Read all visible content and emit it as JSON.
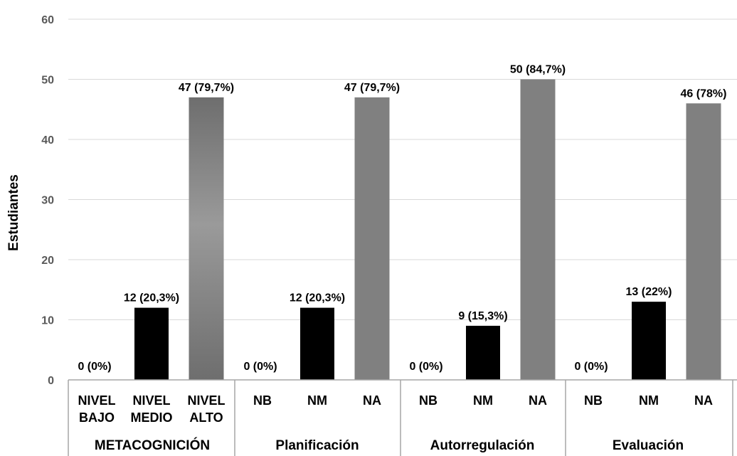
{
  "chart_data": {
    "type": "bar",
    "ylabel": "Estudiantes",
    "ylim": [
      0,
      60
    ],
    "yticks": [
      0,
      10,
      20,
      30,
      40,
      50,
      60
    ],
    "grid": "horizontal",
    "groups": [
      {
        "name": "METACOGNICIÓN",
        "bars": [
          {
            "label": [
              "NIVEL",
              "BAJO"
            ],
            "value": 0,
            "data_label": "0 (0%)"
          },
          {
            "label": [
              "NIVEL",
              "MEDIO"
            ],
            "value": 12,
            "data_label": "12 (20,3%)"
          },
          {
            "label": [
              "NIVEL",
              "ALTO"
            ],
            "value": 47,
            "data_label": "47 (79,7%)"
          }
        ]
      },
      {
        "name": "Planificación",
        "bars": [
          {
            "label": [
              "NB"
            ],
            "value": 0,
            "data_label": "0 (0%)"
          },
          {
            "label": [
              "NM"
            ],
            "value": 12,
            "data_label": "12 (20,3%)"
          },
          {
            "label": [
              "NA"
            ],
            "value": 47,
            "data_label": "47 (79,7%)"
          }
        ]
      },
      {
        "name": "Autorregulación",
        "bars": [
          {
            "label": [
              "NB"
            ],
            "value": 0,
            "data_label": "0 (0%)"
          },
          {
            "label": [
              "NM"
            ],
            "value": 9,
            "data_label": "9 (15,3%)"
          },
          {
            "label": [
              "NA"
            ],
            "value": 50,
            "data_label": "50 (84,7%)"
          }
        ]
      },
      {
        "name": "Evaluación",
        "bars": [
          {
            "label": [
              "NB"
            ],
            "value": 0,
            "data_label": "0 (0%)"
          },
          {
            "label": [
              "NM"
            ],
            "value": 13,
            "data_label": "13 (22%)"
          },
          {
            "label": [
              "NA"
            ],
            "value": 46,
            "data_label": "46 (78%)"
          }
        ]
      }
    ],
    "colors": {
      "medio": "#000000",
      "alto": "#808080",
      "alto_first_top": "#6e6e6e",
      "alto_first_mid": "#9a9a9a",
      "grid": "#d9d9d9",
      "axis": "#a6a6a6",
      "text": "#000000",
      "tick_text": "#595959"
    }
  }
}
